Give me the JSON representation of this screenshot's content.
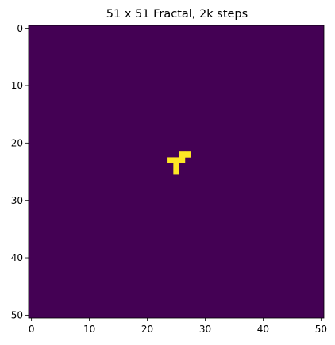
{
  "chart_data": {
    "type": "heatmap",
    "title": "51 x 51 Fractal, 2k steps",
    "xlabel": "",
    "ylabel": "",
    "rows": 51,
    "cols": 51,
    "xlim": [
      -0.5,
      50.5
    ],
    "ylim": [
      50.5,
      -0.5
    ],
    "y_inverted": true,
    "grid": false,
    "legend": "none",
    "colormap": "viridis",
    "colors": {
      "background_value": "#440154",
      "filled_value": "#fde725"
    },
    "background_value": 0,
    "filled_value": 1,
    "filled_cells": [
      {
        "row": 22,
        "col": 26
      },
      {
        "row": 22,
        "col": 27
      },
      {
        "row": 23,
        "col": 24
      },
      {
        "row": 23,
        "col": 25
      },
      {
        "row": 23,
        "col": 26
      },
      {
        "row": 24,
        "col": 25
      },
      {
        "row": 25,
        "col": 25
      }
    ],
    "x_ticks": [
      0,
      10,
      20,
      30,
      40,
      50
    ],
    "y_ticks": [
      0,
      10,
      20,
      30,
      40,
      50
    ],
    "x_tick_labels": [
      "0",
      "10",
      "20",
      "30",
      "40",
      "50"
    ],
    "y_tick_labels": [
      "0",
      "10",
      "20",
      "30",
      "40",
      "50"
    ]
  }
}
